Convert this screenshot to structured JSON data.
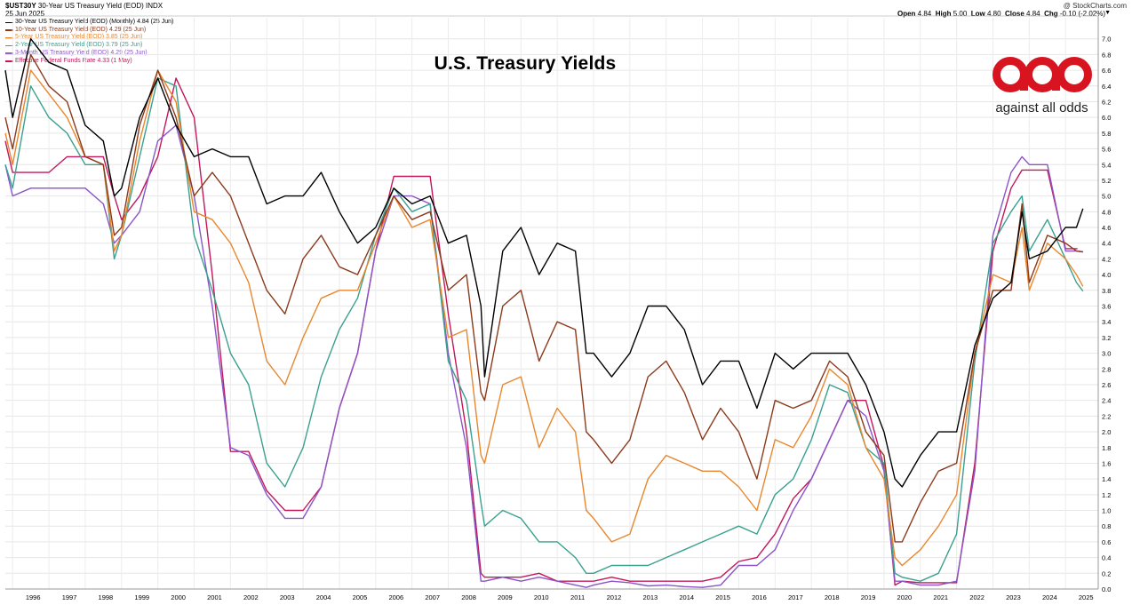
{
  "header": {
    "symbol": "$UST30Y",
    "symbol_desc": "30-Year US Treasury Yield (EOD) INDX",
    "date": "25 Jun 2025",
    "source": "@ StockCharts.com",
    "open_label": "Open",
    "open": "4.84",
    "high_label": "High",
    "high": "5.00",
    "low_label": "Low",
    "low": "4.80",
    "close_label": "Close",
    "close": "4.84",
    "chg_label": "Chg",
    "chg": "-0.10 (-2.02%)"
  },
  "logo": {
    "tagline": "against all odds",
    "color": "#d7141f"
  },
  "chart_data": {
    "type": "line",
    "title": "U.S. Treasury Yields",
    "xlabel": "",
    "ylabel": "",
    "xlim": [
      1995.8,
      2025.9
    ],
    "ylim": [
      0,
      7.2
    ],
    "y_ticks": [
      "0.0",
      "0.2",
      "0.4",
      "0.6",
      "0.8",
      "1.0",
      "1.2",
      "1.4",
      "1.6",
      "1.8",
      "2.0",
      "2.2",
      "2.4",
      "2.6",
      "2.8",
      "3.0",
      "3.2",
      "3.4",
      "3.6",
      "3.8",
      "4.0",
      "4.2",
      "4.4",
      "4.6",
      "4.8",
      "5.0",
      "5.2",
      "5.4",
      "5.6",
      "5.8",
      "6.0",
      "6.2",
      "6.4",
      "6.6",
      "6.8",
      "7.0"
    ],
    "x_ticks": [
      "1996",
      "1997",
      "1998",
      "1999",
      "2000",
      "2001",
      "2002",
      "2003",
      "2004",
      "2005",
      "2006",
      "2007",
      "2008",
      "2009",
      "2010",
      "2011",
      "2012",
      "2013",
      "2014",
      "2015",
      "2016",
      "2017",
      "2018",
      "2019",
      "2020",
      "2021",
      "2022",
      "2023",
      "2024",
      "2025"
    ],
    "grid": true,
    "legend_position": "top-left",
    "series": [
      {
        "name": "30-Year US Treasury Yield (EOD) (Monthly) 4.84 (25 Jun)",
        "color": "#000000",
        "x": [
          1995.8,
          1996.0,
          1996.5,
          1997.0,
          1997.5,
          1998.0,
          1998.5,
          1998.8,
          1999.0,
          1999.5,
          2000.0,
          2000.5,
          2001.0,
          2001.5,
          2002.0,
          2002.5,
          2003.0,
          2003.5,
          2004.0,
          2004.5,
          2005.0,
          2005.5,
          2006.0,
          2006.5,
          2007.0,
          2007.5,
          2008.0,
          2008.5,
          2008.9,
          2009.0,
          2009.5,
          2010.0,
          2010.5,
          2011.0,
          2011.5,
          2011.8,
          2012.0,
          2012.5,
          2013.0,
          2013.5,
          2014.0,
          2014.5,
          2015.0,
          2015.5,
          2016.0,
          2016.5,
          2017.0,
          2017.5,
          2018.0,
          2018.5,
          2019.0,
          2019.5,
          2020.0,
          2020.3,
          2020.5,
          2021.0,
          2021.5,
          2022.0,
          2022.5,
          2023.0,
          2023.5,
          2023.8,
          2024.0,
          2024.5,
          2025.0,
          2025.3,
          2025.48
        ],
        "y": [
          6.6,
          6.0,
          7.0,
          6.7,
          6.6,
          5.9,
          5.7,
          5.0,
          5.1,
          6.0,
          6.5,
          5.9,
          5.5,
          5.6,
          5.5,
          5.5,
          4.9,
          5.0,
          5.0,
          5.3,
          4.8,
          4.4,
          4.6,
          5.1,
          4.9,
          5.0,
          4.4,
          4.5,
          3.6,
          2.7,
          4.3,
          4.6,
          4.0,
          4.4,
          4.3,
          3.0,
          3.0,
          2.7,
          3.0,
          3.6,
          3.6,
          3.3,
          2.6,
          2.9,
          2.9,
          2.3,
          3.0,
          2.8,
          3.0,
          3.0,
          3.0,
          2.6,
          2.0,
          1.4,
          1.3,
          1.7,
          2.0,
          2.0,
          3.1,
          3.7,
          3.9,
          4.8,
          4.2,
          4.3,
          4.6,
          4.6,
          4.84
        ]
      },
      {
        "name": "10-Year US Treasury Yield (EOD) 4.29 (25 Jun)",
        "color": "#8b3a1c",
        "x": [
          1995.8,
          1996.0,
          1996.5,
          1997.0,
          1997.5,
          1998.0,
          1998.5,
          1998.8,
          1999.0,
          1999.5,
          2000.0,
          2000.5,
          2001.0,
          2001.5,
          2002.0,
          2002.5,
          2003.0,
          2003.5,
          2004.0,
          2004.5,
          2005.0,
          2005.5,
          2006.0,
          2006.5,
          2007.0,
          2007.5,
          2008.0,
          2008.5,
          2008.9,
          2009.0,
          2009.5,
          2010.0,
          2010.5,
          2011.0,
          2011.5,
          2011.8,
          2012.0,
          2012.5,
          2013.0,
          2013.5,
          2014.0,
          2014.5,
          2015.0,
          2015.5,
          2016.0,
          2016.5,
          2017.0,
          2017.5,
          2018.0,
          2018.5,
          2019.0,
          2019.5,
          2020.0,
          2020.3,
          2020.5,
          2021.0,
          2021.5,
          2022.0,
          2022.5,
          2023.0,
          2023.5,
          2023.8,
          2024.0,
          2024.5,
          2025.0,
          2025.3,
          2025.48
        ],
        "y": [
          6.0,
          5.6,
          6.8,
          6.4,
          6.2,
          5.5,
          5.4,
          4.5,
          4.6,
          5.9,
          6.6,
          6.0,
          5.0,
          5.3,
          5.0,
          4.4,
          3.8,
          3.5,
          4.2,
          4.5,
          4.1,
          4.0,
          4.5,
          5.0,
          4.7,
          4.8,
          3.8,
          4.0,
          2.5,
          2.4,
          3.6,
          3.8,
          2.9,
          3.4,
          3.3,
          2.0,
          1.9,
          1.6,
          1.9,
          2.7,
          2.9,
          2.5,
          1.9,
          2.3,
          2.0,
          1.4,
          2.4,
          2.3,
          2.4,
          2.9,
          2.7,
          2.0,
          1.7,
          0.6,
          0.6,
          1.1,
          1.5,
          1.6,
          3.0,
          3.8,
          3.8,
          4.9,
          3.9,
          4.5,
          4.4,
          4.3,
          4.29
        ]
      },
      {
        "name": "5-Year US Treasury Yield (EOD) 3.85 (25 Jun)",
        "color": "#e8872e",
        "x": [
          1995.8,
          1996.0,
          1996.5,
          1997.0,
          1997.5,
          1998.0,
          1998.5,
          1998.8,
          1999.0,
          1999.5,
          2000.0,
          2000.5,
          2001.0,
          2001.5,
          2002.0,
          2002.5,
          2003.0,
          2003.5,
          2004.0,
          2004.5,
          2005.0,
          2005.5,
          2006.0,
          2006.5,
          2007.0,
          2007.5,
          2008.0,
          2008.5,
          2008.9,
          2009.0,
          2009.5,
          2010.0,
          2010.5,
          2011.0,
          2011.5,
          2011.8,
          2012.0,
          2012.5,
          2013.0,
          2013.5,
          2014.0,
          2014.5,
          2015.0,
          2015.5,
          2016.0,
          2016.5,
          2017.0,
          2017.5,
          2018.0,
          2018.5,
          2019.0,
          2019.5,
          2020.0,
          2020.3,
          2020.5,
          2021.0,
          2021.5,
          2022.0,
          2022.5,
          2023.0,
          2023.5,
          2023.8,
          2024.0,
          2024.5,
          2025.0,
          2025.3,
          2025.48
        ],
        "y": [
          5.8,
          5.4,
          6.6,
          6.3,
          6.0,
          5.5,
          5.4,
          4.3,
          4.5,
          5.7,
          6.6,
          6.2,
          4.8,
          4.7,
          4.4,
          3.9,
          2.9,
          2.6,
          3.2,
          3.7,
          3.8,
          3.8,
          4.4,
          5.0,
          4.6,
          4.7,
          3.2,
          3.3,
          1.7,
          1.6,
          2.6,
          2.7,
          1.8,
          2.3,
          2.0,
          1.0,
          0.9,
          0.6,
          0.7,
          1.4,
          1.7,
          1.6,
          1.5,
          1.5,
          1.3,
          1.0,
          1.9,
          1.8,
          2.2,
          2.8,
          2.6,
          1.8,
          1.4,
          0.4,
          0.3,
          0.5,
          0.8,
          1.2,
          3.0,
          4.0,
          3.9,
          4.6,
          3.8,
          4.4,
          4.2,
          4.0,
          3.85
        ]
      },
      {
        "name": "2-Year US Treasury Yield (EOD) 3.79 (25 Jun)",
        "color": "#3aa08f",
        "x": [
          1995.8,
          1996.0,
          1996.5,
          1997.0,
          1997.5,
          1998.0,
          1998.5,
          1998.8,
          1999.0,
          1999.5,
          2000.0,
          2000.5,
          2001.0,
          2001.5,
          2002.0,
          2002.5,
          2003.0,
          2003.5,
          2004.0,
          2004.5,
          2005.0,
          2005.5,
          2006.0,
          2006.5,
          2007.0,
          2007.5,
          2008.0,
          2008.5,
          2008.9,
          2009.0,
          2009.5,
          2010.0,
          2010.5,
          2011.0,
          2011.5,
          2011.8,
          2012.0,
          2012.5,
          2013.0,
          2013.5,
          2014.0,
          2014.5,
          2015.0,
          2015.5,
          2016.0,
          2016.5,
          2017.0,
          2017.5,
          2018.0,
          2018.5,
          2019.0,
          2019.5,
          2020.0,
          2020.3,
          2020.5,
          2021.0,
          2021.5,
          2022.0,
          2022.5,
          2023.0,
          2023.5,
          2023.8,
          2024.0,
          2024.5,
          2025.0,
          2025.3,
          2025.48
        ],
        "y": [
          5.4,
          5.1,
          6.4,
          6.0,
          5.8,
          5.4,
          5.4,
          4.2,
          4.5,
          5.5,
          6.5,
          6.4,
          4.5,
          3.8,
          3.0,
          2.6,
          1.6,
          1.3,
          1.8,
          2.7,
          3.3,
          3.7,
          4.5,
          5.1,
          4.8,
          4.9,
          2.9,
          2.4,
          1.1,
          0.8,
          1.0,
          0.9,
          0.6,
          0.6,
          0.4,
          0.2,
          0.2,
          0.3,
          0.3,
          0.3,
          0.4,
          0.5,
          0.6,
          0.7,
          0.8,
          0.7,
          1.2,
          1.4,
          1.9,
          2.6,
          2.5,
          1.8,
          1.6,
          0.2,
          0.15,
          0.1,
          0.2,
          0.7,
          2.9,
          4.4,
          4.8,
          5.0,
          4.3,
          4.7,
          4.2,
          3.9,
          3.79
        ]
      },
      {
        "name": "3-Month US Treasury Yield (EOD) 4.29 (25 Jun)",
        "color": "#8a55c8",
        "x": [
          1995.8,
          1996.0,
          1996.5,
          1997.0,
          1997.5,
          1998.0,
          1998.5,
          1998.8,
          1999.0,
          1999.5,
          2000.0,
          2000.5,
          2001.0,
          2001.5,
          2002.0,
          2002.5,
          2003.0,
          2003.5,
          2004.0,
          2004.5,
          2005.0,
          2005.5,
          2006.0,
          2006.5,
          2007.0,
          2007.5,
          2008.0,
          2008.5,
          2008.9,
          2009.0,
          2009.5,
          2010.0,
          2010.5,
          2011.0,
          2011.5,
          2011.8,
          2012.0,
          2012.5,
          2013.0,
          2013.5,
          2014.0,
          2014.5,
          2015.0,
          2015.5,
          2016.0,
          2016.5,
          2017.0,
          2017.5,
          2018.0,
          2018.5,
          2019.0,
          2019.5,
          2020.0,
          2020.3,
          2020.5,
          2021.0,
          2021.5,
          2022.0,
          2022.5,
          2023.0,
          2023.5,
          2023.8,
          2024.0,
          2024.5,
          2025.0,
          2025.3,
          2025.48
        ],
        "y": [
          5.4,
          5.0,
          5.1,
          5.1,
          5.1,
          5.1,
          4.9,
          4.4,
          4.5,
          4.8,
          5.7,
          5.9,
          5.0,
          3.6,
          1.8,
          1.7,
          1.2,
          0.9,
          0.9,
          1.3,
          2.3,
          3.0,
          4.3,
          5.0,
          5.0,
          4.9,
          3.0,
          1.8,
          0.1,
          0.1,
          0.15,
          0.1,
          0.15,
          0.1,
          0.05,
          0.02,
          0.05,
          0.1,
          0.08,
          0.04,
          0.05,
          0.03,
          0.02,
          0.05,
          0.3,
          0.3,
          0.5,
          1.0,
          1.4,
          1.9,
          2.4,
          2.2,
          1.5,
          0.1,
          0.1,
          0.05,
          0.05,
          0.1,
          1.5,
          4.5,
          5.3,
          5.5,
          5.4,
          5.4,
          4.3,
          4.3,
          4.29
        ]
      },
      {
        "name": "Effective Federal Funds Rate 4.33 (1 May)",
        "color": "#c2185b",
        "x": [
          1995.8,
          1996.0,
          1996.5,
          1997.0,
          1997.5,
          1998.0,
          1998.5,
          1998.8,
          1999.0,
          1999.5,
          2000.0,
          2000.5,
          2001.0,
          2001.5,
          2002.0,
          2002.5,
          2003.0,
          2003.5,
          2004.0,
          2004.5,
          2005.0,
          2005.5,
          2006.0,
          2006.5,
          2007.0,
          2007.5,
          2008.0,
          2008.5,
          2008.9,
          2009.0,
          2009.5,
          2010.0,
          2010.5,
          2011.0,
          2011.5,
          2011.8,
          2012.0,
          2012.5,
          2013.0,
          2013.5,
          2014.0,
          2014.5,
          2015.0,
          2015.5,
          2016.0,
          2016.5,
          2017.0,
          2017.5,
          2018.0,
          2018.5,
          2019.0,
          2019.5,
          2020.0,
          2020.3,
          2020.5,
          2021.0,
          2021.5,
          2022.0,
          2022.5,
          2023.0,
          2023.5,
          2023.8,
          2024.0,
          2024.5,
          2025.0,
          2025.3,
          2025.33
        ],
        "y": [
          5.7,
          5.3,
          5.3,
          5.3,
          5.5,
          5.5,
          5.5,
          5.0,
          4.7,
          5.0,
          5.5,
          6.5,
          6.0,
          4.0,
          1.75,
          1.75,
          1.25,
          1.0,
          1.0,
          1.3,
          2.3,
          3.0,
          4.3,
          5.25,
          5.25,
          5.25,
          3.5,
          2.0,
          0.2,
          0.15,
          0.15,
          0.15,
          0.2,
          0.1,
          0.1,
          0.1,
          0.1,
          0.15,
          0.1,
          0.1,
          0.1,
          0.1,
          0.1,
          0.15,
          0.35,
          0.4,
          0.7,
          1.15,
          1.4,
          1.9,
          2.4,
          2.4,
          1.55,
          0.05,
          0.1,
          0.08,
          0.08,
          0.08,
          1.6,
          4.3,
          5.1,
          5.33,
          5.33,
          5.33,
          4.33,
          4.33,
          4.33
        ]
      }
    ]
  }
}
